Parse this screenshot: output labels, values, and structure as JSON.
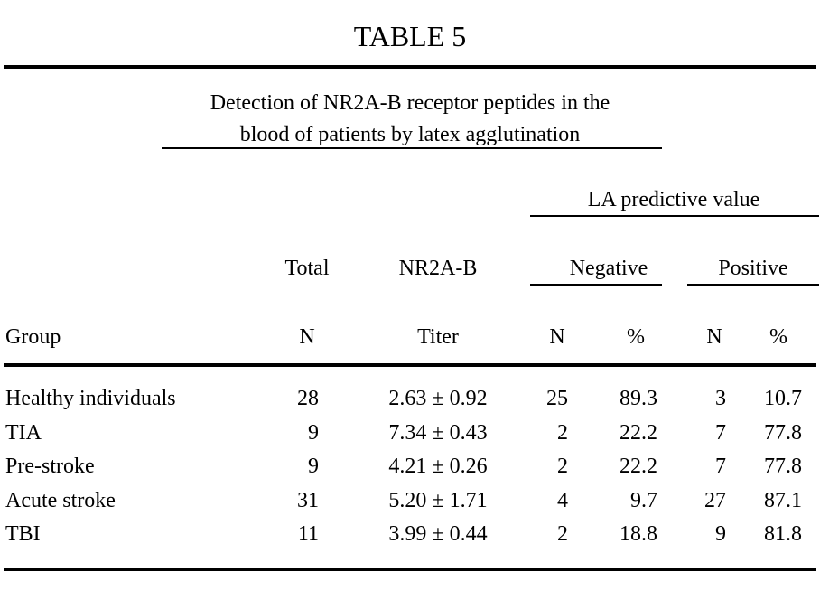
{
  "table_number": "TABLE 5",
  "caption": {
    "line1": "Detection of NR2A-B receptor peptides in the",
    "line2": "blood of patients by latex agglutination"
  },
  "headers": {
    "la_predictive": "LA predictive value",
    "total": "Total",
    "nr2ab": "NR2A-B",
    "negative": "Negative",
    "positive": "Positive",
    "group": "Group",
    "total_n": "N",
    "titer": "Titer",
    "neg_n": "N",
    "neg_pct": "%",
    "pos_n": "N",
    "pos_pct": "%"
  },
  "rows": [
    {
      "group": "Healthy individuals",
      "total": "28",
      "titer": "2.63 ± 0.92",
      "neg_n": "25",
      "neg_pct": "89.3",
      "pos_n": "3",
      "pos_pct": "10.7"
    },
    {
      "group": "TIA",
      "total": "9",
      "titer": "7.34 ± 0.43",
      "neg_n": "2",
      "neg_pct": "22.2",
      "pos_n": "7",
      "pos_pct": "77.8"
    },
    {
      "group": "Pre-stroke",
      "total": "9",
      "titer": "4.21 ± 0.26",
      "neg_n": "2",
      "neg_pct": "22.2",
      "pos_n": "7",
      "pos_pct": "77.8"
    },
    {
      "group": "Acute stroke",
      "total": "31",
      "titer": "5.20 ± 1.71",
      "neg_n": "4",
      "neg_pct": "9.7",
      "pos_n": "27",
      "pos_pct": "87.1"
    },
    {
      "group": "TBI",
      "total": "11",
      "titer": "3.99 ± 0.44",
      "neg_n": "2",
      "neg_pct": "18.8",
      "pos_n": "9",
      "pos_pct": "81.8"
    }
  ]
}
